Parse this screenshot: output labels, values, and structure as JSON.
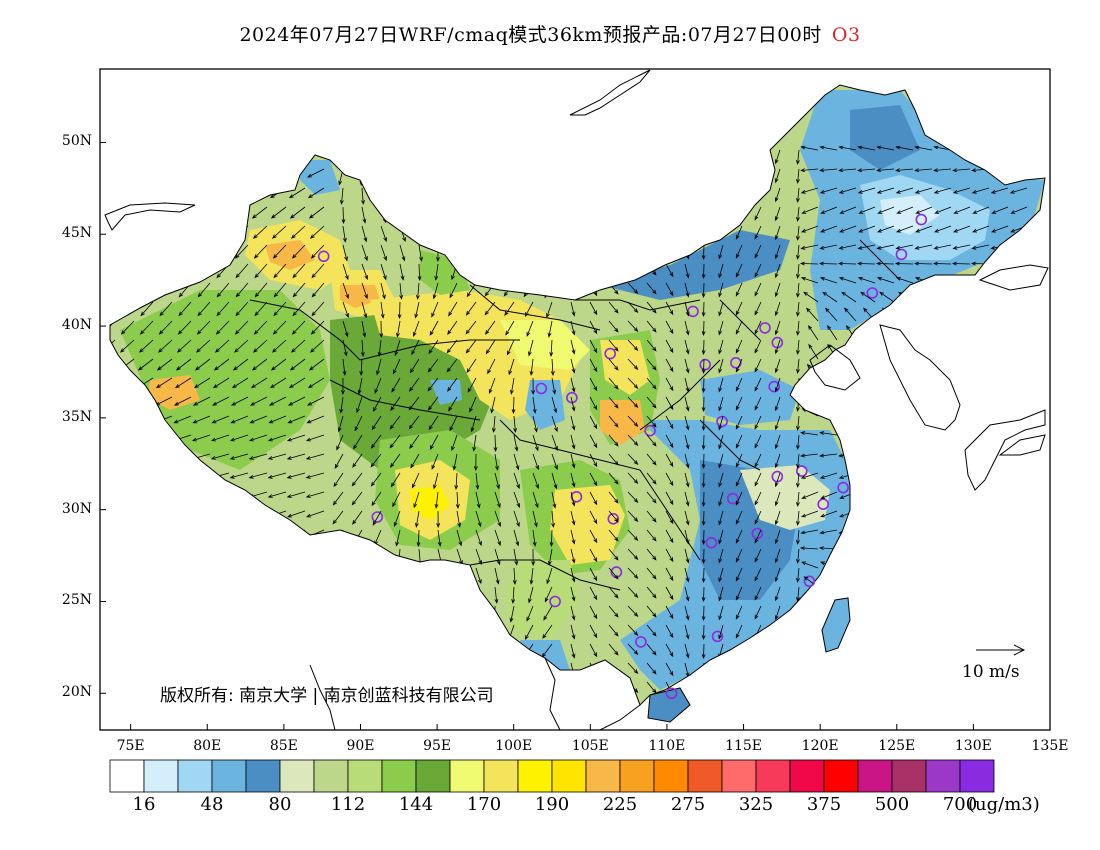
{
  "title": {
    "main": "2024年07月27日WRF/cmaq模式36km预报产品:07月27日00时",
    "species": "O3",
    "species_color": "#d9262a"
  },
  "map": {
    "lon_range": [
      73,
      135
    ],
    "lat_range": [
      18,
      54
    ],
    "lon_ticks": [
      "75E",
      "80E",
      "85E",
      "90E",
      "95E",
      "100E",
      "105E",
      "110E",
      "115E",
      "120E",
      "125E",
      "130E",
      "135E"
    ],
    "lat_ticks": [
      "20N",
      "25N",
      "30N",
      "35N",
      "40N",
      "45N",
      "50N"
    ],
    "copyright": "版权所有: 南京大学 | 南京创蓝科技有限公司",
    "wind_reference": "10 m/s",
    "station_marker_color": "#8a2be2"
  },
  "colorbar": {
    "colors": [
      "#ffffff",
      "#d4eefb",
      "#a0d8f4",
      "#6cb4e0",
      "#4a8ec4",
      "#dce8bc",
      "#bcd68a",
      "#b8dc78",
      "#8ccc4c",
      "#6aa838",
      "#f0fa70",
      "#f4e45c",
      "#fff200",
      "#ffe400",
      "#f8b848",
      "#f8a020",
      "#ff8a00",
      "#f05a28",
      "#ff6a6a",
      "#f83a5a",
      "#f00848",
      "#ff0000",
      "#c81484",
      "#a83268",
      "#9c38c8",
      "#8a2be2"
    ],
    "labels": [
      "16",
      "48",
      "80",
      "112",
      "144",
      "170",
      "190",
      "225",
      "275",
      "325",
      "375",
      "500",
      "700"
    ],
    "unit": "(ug/m3)"
  }
}
